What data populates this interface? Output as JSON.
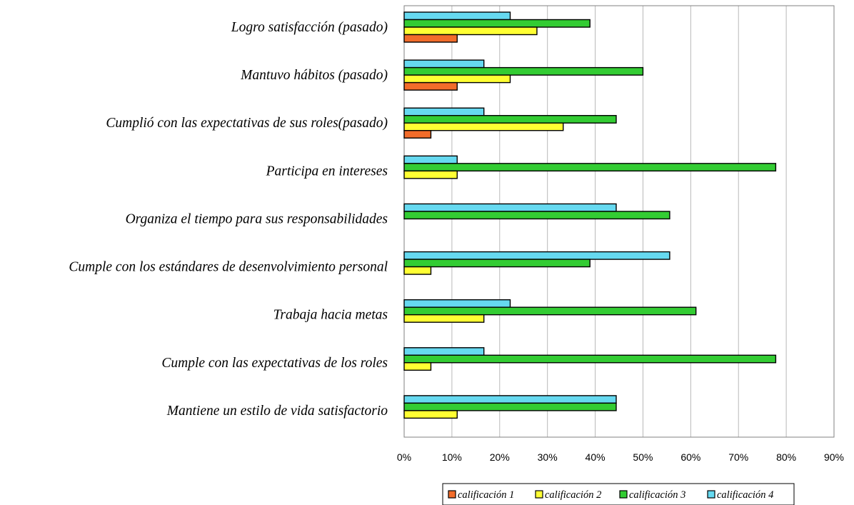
{
  "chart_data": {
    "type": "bar",
    "orientation": "horizontal",
    "title": "",
    "xlabel": "",
    "ylabel": "",
    "xlim": [
      0,
      0.9
    ],
    "x_ticks": [
      "0%",
      "10%",
      "20%",
      "30%",
      "40%",
      "50%",
      "60%",
      "70%",
      "80%",
      "90%"
    ],
    "grid": "vertical",
    "legend_position": "bottom",
    "categories": [
      "Logro satisfacción (pasado)",
      "Mantuvo hábitos (pasado)",
      "Cumplió con las expectativas de sus roles(pasado)",
      "Participa en intereses",
      "Organiza el tiempo para sus responsabilidades",
      "Cumple con los estándares de desenvolvimiento personal",
      "Trabaja hacia metas",
      "Cumple con las expectativas de los roles",
      "Mantiene un estilo de vida satisfactorio"
    ],
    "series": [
      {
        "name": "calificación 1",
        "color": "#f26c2a",
        "values": [
          0.111,
          0.111,
          0.056,
          0,
          0,
          0,
          0,
          0,
          0
        ]
      },
      {
        "name": "calificación 2",
        "color": "#ffff33",
        "values": [
          0.278,
          0.222,
          0.333,
          0.111,
          0,
          0.056,
          0.167,
          0.056,
          0.111
        ]
      },
      {
        "name": "calificación 3",
        "color": "#33cc33",
        "values": [
          0.389,
          0.5,
          0.444,
          0.778,
          0.556,
          0.389,
          0.611,
          0.778,
          0.444
        ]
      },
      {
        "name": "calificación 4",
        "color": "#66d9f0",
        "values": [
          0.222,
          0.167,
          0.167,
          0.111,
          0.444,
          0.556,
          0.222,
          0.167,
          0.444
        ]
      }
    ]
  }
}
